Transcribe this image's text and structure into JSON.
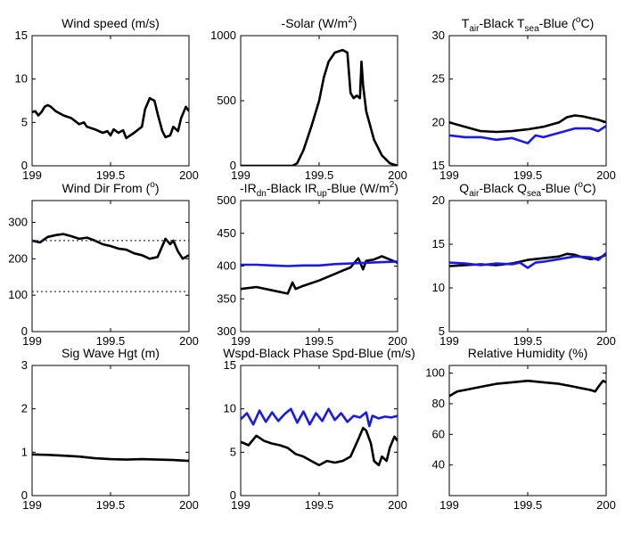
{
  "chart_data": [
    {
      "id": "wind_speed",
      "type": "line",
      "title": "Wind speed (m/s)",
      "xlim": [
        199,
        200
      ],
      "ylim": [
        0,
        15
      ],
      "xticks": [
        "199",
        "199.5",
        "200"
      ],
      "yticks": [
        "0",
        "5",
        "10",
        "15"
      ],
      "series": [
        {
          "color": "#000000",
          "x": [
            199.0,
            199.02,
            199.04,
            199.06,
            199.08,
            199.1,
            199.12,
            199.15,
            199.2,
            199.25,
            199.3,
            199.33,
            199.35,
            199.4,
            199.45,
            199.48,
            199.5,
            199.52,
            199.55,
            199.58,
            199.6,
            199.65,
            199.7,
            199.72,
            199.75,
            199.78,
            199.8,
            199.83,
            199.85,
            199.88,
            199.9,
            199.93,
            199.95,
            199.98,
            200.0
          ],
          "y": [
            6.2,
            6.3,
            5.8,
            6.2,
            6.8,
            7.0,
            6.8,
            6.3,
            5.8,
            5.5,
            4.8,
            5.0,
            4.5,
            4.2,
            3.8,
            4.0,
            3.5,
            4.2,
            3.8,
            4.1,
            3.2,
            3.8,
            4.5,
            6.5,
            7.8,
            7.5,
            6.0,
            4.0,
            3.3,
            3.5,
            4.5,
            4.0,
            5.5,
            6.8,
            6.3
          ]
        }
      ]
    },
    {
      "id": "solar",
      "type": "line",
      "title": "-Solar (W/m2)",
      "title_parts": {
        "a": "-Solar (W/m",
        "b": "2",
        "c": ")"
      },
      "xlim": [
        199,
        200
      ],
      "ylim": [
        0,
        1000
      ],
      "xticks": [
        "199",
        "199.5",
        "200"
      ],
      "yticks": [
        "0",
        "500",
        "1000"
      ],
      "series": [
        {
          "color": "#000000",
          "x": [
            199.0,
            199.2,
            199.33,
            199.36,
            199.4,
            199.45,
            199.5,
            199.53,
            199.56,
            199.6,
            199.65,
            199.68,
            199.7,
            199.72,
            199.74,
            199.76,
            199.77,
            199.78,
            199.8,
            199.85,
            199.9,
            199.95,
            200.0
          ],
          "y": [
            0,
            0,
            0,
            20,
            120,
            300,
            500,
            680,
            800,
            870,
            890,
            870,
            560,
            520,
            540,
            520,
            800,
            620,
            420,
            200,
            80,
            20,
            0
          ]
        }
      ]
    },
    {
      "id": "temps",
      "type": "line",
      "title": "Tair-Black Tsea-Blue (oC)",
      "title_parts": {
        "a": "T",
        "b": "air",
        "c": "-Black  T",
        "d": "sea",
        "e": "-Blue (",
        "f": "o",
        "g": "C)"
      },
      "xlim": [
        199,
        200
      ],
      "ylim": [
        15,
        30
      ],
      "xticks": [
        "199",
        "199.5",
        "200"
      ],
      "yticks": [
        "15",
        "20",
        "25",
        "30"
      ],
      "series": [
        {
          "color": "#000000",
          "x": [
            199.0,
            199.1,
            199.2,
            199.3,
            199.4,
            199.5,
            199.6,
            199.7,
            199.75,
            199.8,
            199.85,
            199.9,
            199.95,
            200.0
          ],
          "y": [
            20.0,
            19.5,
            19.0,
            18.9,
            19.0,
            19.2,
            19.5,
            20.0,
            20.6,
            20.8,
            20.7,
            20.5,
            20.3,
            20.0
          ]
        },
        {
          "color": "#1a1ae6",
          "x": [
            199.0,
            199.1,
            199.2,
            199.3,
            199.4,
            199.45,
            199.5,
            199.55,
            199.6,
            199.7,
            199.8,
            199.9,
            199.95,
            200.0
          ],
          "y": [
            18.5,
            18.3,
            18.3,
            18.0,
            18.2,
            17.9,
            17.6,
            18.5,
            18.3,
            18.8,
            19.3,
            19.3,
            19.0,
            19.6
          ]
        }
      ]
    },
    {
      "id": "wind_dir",
      "type": "line",
      "title": "Wind Dir From (o)",
      "title_parts": {
        "a": "Wind Dir From (",
        "b": "o",
        "c": ")"
      },
      "xlim": [
        199,
        200
      ],
      "ylim": [
        0,
        360
      ],
      "xticks": [
        "199",
        "199.5",
        "200"
      ],
      "yticks": [
        "0",
        "100",
        "200",
        "300"
      ],
      "series": [
        {
          "color": "#000000",
          "x": [
            199.0,
            199.05,
            199.1,
            199.15,
            199.2,
            199.25,
            199.3,
            199.35,
            199.4,
            199.45,
            199.5,
            199.55,
            199.6,
            199.65,
            199.7,
            199.75,
            199.8,
            199.85,
            199.88,
            199.9,
            199.93,
            199.96,
            200.0
          ],
          "y": [
            250,
            245,
            260,
            265,
            268,
            262,
            255,
            258,
            250,
            240,
            235,
            228,
            225,
            215,
            210,
            200,
            205,
            255,
            240,
            250,
            220,
            200,
            210
          ]
        },
        {
          "color": "#333366",
          "dashed": true,
          "x": [
            199.0,
            200.0
          ],
          "y": [
            250,
            250
          ]
        },
        {
          "color": "#333366",
          "dashed": true,
          "x": [
            199.0,
            200.0
          ],
          "y": [
            110,
            110
          ]
        }
      ]
    },
    {
      "id": "ir",
      "type": "line",
      "title": "-IRdn-Black IRup-Blue (W/m2)",
      "title_parts": {
        "a": "-IR",
        "b": "dn",
        "c": "-Black  IR",
        "d": "up",
        "e": "-Blue (W/m",
        "f": "2",
        "g": ")"
      },
      "xlim": [
        199,
        200
      ],
      "ylim": [
        300,
        500
      ],
      "xticks": [
        "199",
        "199.5",
        "200"
      ],
      "yticks": [
        "300",
        "350",
        "400",
        "450",
        "500"
      ],
      "series": [
        {
          "color": "#000000",
          "x": [
            199.0,
            199.1,
            199.2,
            199.3,
            199.33,
            199.35,
            199.4,
            199.5,
            199.6,
            199.65,
            199.7,
            199.75,
            199.78,
            199.8,
            199.85,
            199.9,
            199.95,
            200.0
          ],
          "y": [
            365,
            368,
            363,
            358,
            375,
            365,
            370,
            378,
            388,
            393,
            398,
            412,
            395,
            408,
            410,
            415,
            410,
            405
          ]
        },
        {
          "color": "#1a1ae6",
          "x": [
            199.0,
            199.1,
            199.2,
            199.3,
            199.4,
            199.5,
            199.6,
            199.7,
            199.8,
            199.9,
            200.0
          ],
          "y": [
            402,
            402,
            401,
            400,
            401,
            401,
            403,
            404,
            405,
            406,
            407
          ]
        }
      ]
    },
    {
      "id": "humidity_q",
      "type": "line",
      "title": "Qair-Black Qsea-Blue (oC)",
      "title_parts": {
        "a": "Q",
        "b": "air",
        "c": "-Black  Q",
        "d": "sea",
        "e": "-Blue (",
        "f": "o",
        "g": "C)"
      },
      "xlim": [
        199,
        200
      ],
      "ylim": [
        5,
        20
      ],
      "xticks": [
        "199",
        "199.5",
        "200"
      ],
      "yticks": [
        "5",
        "10",
        "15",
        "20"
      ],
      "series": [
        {
          "color": "#000000",
          "x": [
            199.0,
            199.1,
            199.2,
            199.3,
            199.4,
            199.5,
            199.6,
            199.7,
            199.75,
            199.8,
            199.85,
            199.9,
            199.95,
            200.0
          ],
          "y": [
            12.5,
            12.6,
            12.7,
            12.6,
            12.8,
            13.2,
            13.4,
            13.6,
            13.9,
            13.8,
            13.5,
            13.3,
            13.4,
            13.8
          ]
        },
        {
          "color": "#1a1ae6",
          "x": [
            199.0,
            199.1,
            199.2,
            199.3,
            199.4,
            199.45,
            199.5,
            199.55,
            199.6,
            199.7,
            199.8,
            199.9,
            199.95,
            200.0
          ],
          "y": [
            12.9,
            12.8,
            12.6,
            12.8,
            12.7,
            12.9,
            12.3,
            12.9,
            13.0,
            13.3,
            13.6,
            13.5,
            13.2,
            14.0
          ]
        }
      ]
    },
    {
      "id": "wave_height",
      "type": "line",
      "title": "Sig Wave Hgt (m)",
      "xlim": [
        199,
        200
      ],
      "ylim": [
        0,
        3
      ],
      "xticks": [
        "199",
        "199.5",
        "200"
      ],
      "yticks": [
        "0",
        "1",
        "2",
        "3"
      ],
      "series": [
        {
          "color": "#000000",
          "x": [
            199.0,
            199.1,
            199.2,
            199.3,
            199.4,
            199.5,
            199.6,
            199.7,
            199.8,
            199.9,
            200.0
          ],
          "y": [
            0.95,
            0.94,
            0.92,
            0.9,
            0.86,
            0.84,
            0.83,
            0.84,
            0.83,
            0.82,
            0.8
          ]
        }
      ]
    },
    {
      "id": "wspd_phase",
      "type": "line",
      "title": "Wspd-Black Phase Spd-Blue (m/s)",
      "xlim": [
        199,
        200
      ],
      "ylim": [
        0,
        15
      ],
      "xticks": [
        "199",
        "199.5",
        "200"
      ],
      "yticks": [
        "0",
        "5",
        "10",
        "15"
      ],
      "series": [
        {
          "color": "#000000",
          "x": [
            199.0,
            199.05,
            199.1,
            199.15,
            199.2,
            199.25,
            199.3,
            199.35,
            199.4,
            199.45,
            199.5,
            199.55,
            199.6,
            199.65,
            199.7,
            199.75,
            199.78,
            199.8,
            199.83,
            199.85,
            199.88,
            199.9,
            199.93,
            199.95,
            199.98,
            200.0
          ],
          "y": [
            6.2,
            5.8,
            6.9,
            6.3,
            6.0,
            5.8,
            5.5,
            4.8,
            4.5,
            4.0,
            3.5,
            4.0,
            3.8,
            4.0,
            4.5,
            6.5,
            7.8,
            7.5,
            6.0,
            4.0,
            3.5,
            4.5,
            4.0,
            5.5,
            6.8,
            6.3
          ]
        },
        {
          "color": "#1a1ae6",
          "x": [
            199.0,
            199.04,
            199.08,
            199.12,
            199.16,
            199.2,
            199.24,
            199.28,
            199.32,
            199.36,
            199.4,
            199.44,
            199.48,
            199.52,
            199.56,
            199.6,
            199.64,
            199.68,
            199.72,
            199.76,
            199.8,
            199.82,
            199.84,
            199.88,
            199.92,
            199.96,
            200.0
          ],
          "y": [
            8.8,
            9.5,
            8.2,
            9.8,
            8.5,
            9.6,
            8.6,
            9.4,
            10.0,
            8.4,
            9.7,
            8.2,
            9.5,
            8.6,
            10.0,
            8.7,
            9.5,
            8.5,
            9.2,
            9.0,
            9.6,
            8.0,
            9.2,
            8.9,
            9.1,
            9.0,
            9.2
          ]
        }
      ]
    },
    {
      "id": "rel_humidity",
      "type": "line",
      "title": "Relative Humidity (%)",
      "xlim": [
        199,
        200
      ],
      "ylim": [
        20,
        105
      ],
      "xticks": [
        "199",
        "199.5",
        "200"
      ],
      "yticks": [
        "40",
        "60",
        "80",
        "100"
      ],
      "series": [
        {
          "color": "#000000",
          "x": [
            199.0,
            199.05,
            199.1,
            199.2,
            199.3,
            199.4,
            199.5,
            199.6,
            199.7,
            199.8,
            199.85,
            199.9,
            199.93,
            199.95,
            199.98,
            200.0
          ],
          "y": [
            85,
            88,
            89,
            91,
            93,
            94,
            95,
            94,
            93,
            91,
            90,
            89,
            88,
            91,
            95,
            94
          ]
        }
      ]
    }
  ]
}
